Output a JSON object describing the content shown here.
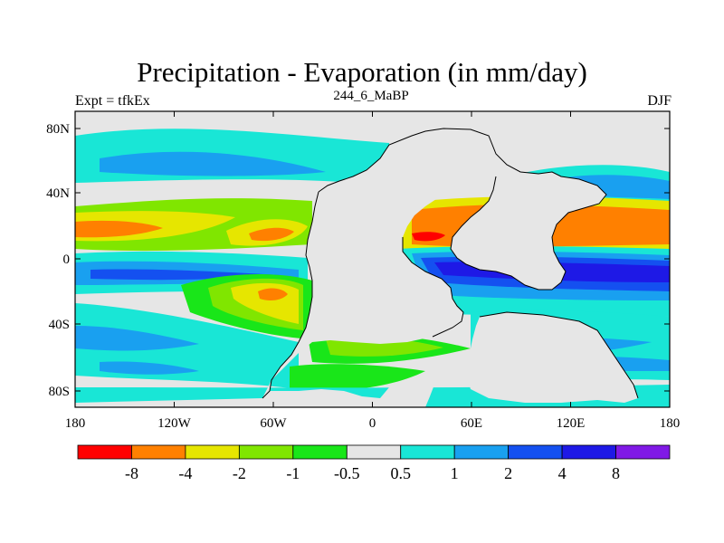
{
  "title": "Precipitation - Evaporation (in mm/day)",
  "left_label": "Expt = tfkEx",
  "center_label": "244_6_MaBP",
  "right_label": "DJF",
  "lat_ticks": [
    "80N",
    "40N",
    "0",
    "40S",
    "80S"
  ],
  "lon_ticks": [
    "180",
    "120W",
    "60W",
    "0",
    "60E",
    "120E",
    "180"
  ],
  "colorbar": {
    "colors": [
      "#ff0000",
      "#ff8000",
      "#e6e600",
      "#80e600",
      "#19e619",
      "#e6e6e6",
      "#19e6d6",
      "#19a0f0",
      "#1450f0",
      "#1e19e6",
      "#8019e6"
    ],
    "labels": [
      "-8",
      "-4",
      "-2",
      "-1",
      "-0.5",
      "0.5",
      "1",
      "2",
      "4",
      "8"
    ]
  },
  "palette": {
    "land": "#e6e6e6",
    "neutral": "#e6e6e6",
    "wet1": "#19e6d6",
    "wet2": "#19a0f0",
    "wet3": "#1450f0",
    "wet4": "#1e19e6",
    "dry1": "#19e619",
    "dry2": "#80e600",
    "dry3": "#e6e600",
    "dry4": "#ff8000",
    "dry5": "#ff0000"
  }
}
